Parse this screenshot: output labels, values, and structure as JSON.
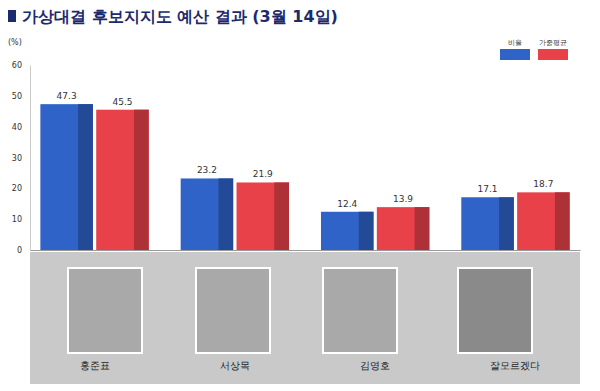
{
  "chart_data": {
    "type": "bar",
    "title": "가상대결 후보지지도 예산 결과 (3월 14일)",
    "y_label": "(%)",
    "categories": [
      "홍준표",
      "서상목",
      "김영호",
      "잘모르겠다"
    ],
    "series": [
      {
        "name": "비율",
        "color": "#2f63c8",
        "values": [
          47.3,
          23.2,
          12.4,
          17.1
        ]
      },
      {
        "name": "가중평균",
        "color": "#e8414a",
        "values": [
          45.5,
          21.9,
          13.9,
          18.7
        ]
      }
    ],
    "ylim": [
      0,
      60
    ],
    "yticks": [
      0,
      10,
      20,
      30,
      40,
      50,
      60
    ],
    "grid": false,
    "legend": "top-right",
    "data_labels": true
  }
}
